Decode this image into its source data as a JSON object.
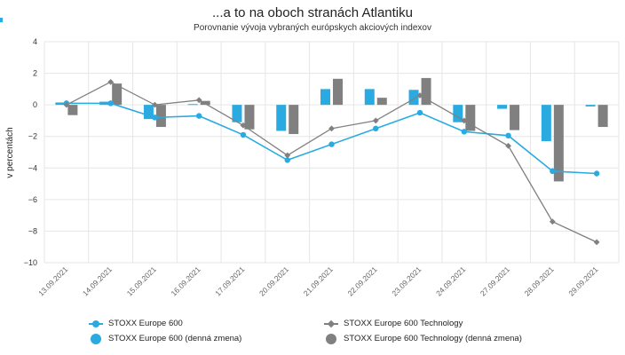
{
  "title": "...a to na oboch stranách Atlantiku",
  "subtitle": "Porovnanie vývoja vybraných európskych akciových indexov",
  "colors": {
    "stoxx": "#29abe2",
    "tech": "#808080",
    "grid": "#e6e6e6",
    "accent": "#29abe2"
  },
  "chart_data": {
    "type": "line",
    "title": "...a to na oboch stranách Atlantiku",
    "subtitle": "Porovnanie vývoja vybraných európskych akciových indexov",
    "xlabel": "",
    "ylabel": "v percentách",
    "ylim": [
      -10,
      4
    ],
    "yticks": [
      4,
      2,
      0,
      -2,
      -4,
      -6,
      -8,
      -10
    ],
    "grid": true,
    "legend_position": "bottom",
    "categories": [
      "13.09.2021",
      "14.09.2021",
      "15.09.2021",
      "16.09.2021",
      "17.09.2021",
      "20.09.2021",
      "21.09.2021",
      "22.09.2021",
      "23.09.2021",
      "24.09.2021",
      "27.09.2021",
      "28.09.2021",
      "29.09.2021"
    ],
    "series": [
      {
        "name": "STOXX Europe 600",
        "type": "line",
        "color": "#29abe2",
        "values": [
          0.1,
          0.1,
          -0.8,
          -0.7,
          -1.9,
          -3.5,
          -2.5,
          -1.5,
          -0.5,
          -1.7,
          -1.95,
          -4.2,
          -4.35
        ]
      },
      {
        "name": "STOXX Europe 600 (denná zmena)",
        "type": "bar",
        "color": "#29abe2",
        "values": [
          0.15,
          0.2,
          -0.9,
          0.05,
          -1.1,
          -1.65,
          1.0,
          1.0,
          0.95,
          -1.1,
          -0.25,
          -2.3,
          -0.1
        ]
      },
      {
        "name": "STOXX Europe 600 Technology",
        "type": "line",
        "color": "#808080",
        "values": [
          0.0,
          1.45,
          0.0,
          0.3,
          -1.3,
          -3.2,
          -1.5,
          -1.0,
          0.6,
          -1.0,
          -2.6,
          -7.4,
          -8.7
        ]
      },
      {
        "name": "STOXX Europe 600 Technology (denná zmena)",
        "type": "bar",
        "color": "#808080",
        "values": [
          -0.65,
          1.35,
          -1.4,
          0.25,
          -1.55,
          -1.85,
          1.65,
          0.45,
          1.7,
          -1.65,
          -1.6,
          -4.85,
          -1.4
        ]
      }
    ]
  }
}
